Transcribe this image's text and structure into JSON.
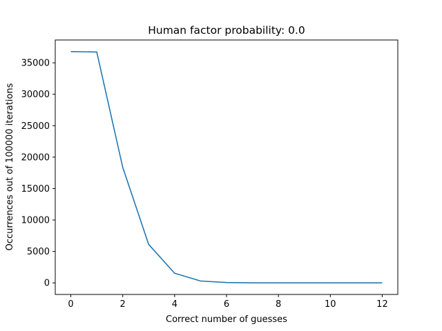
{
  "chart_data": {
    "type": "line",
    "title": "Human factor probability: 0.0",
    "xlabel": "Correct number of guesses",
    "ylabel": "Occurrences out of 100000 iterations",
    "x": [
      0,
      1,
      2,
      3,
      4,
      5,
      6,
      7,
      8,
      9,
      10,
      11,
      12
    ],
    "series": [
      {
        "values": [
          36788,
          36710,
          18380,
          6117,
          1535,
          300,
          60,
          8,
          1,
          0,
          0,
          0,
          0
        ],
        "color": "#1f77b4"
      }
    ],
    "xlim": [
      -0.6,
      12.6
    ],
    "ylim": [
      -1839.4,
      38627.4
    ],
    "xticks": [
      0,
      2,
      4,
      6,
      8,
      10,
      12
    ],
    "xtick_labels": [
      "0",
      "2",
      "4",
      "6",
      "8",
      "10",
      "12"
    ],
    "yticks": [
      0,
      5000,
      10000,
      15000,
      20000,
      25000,
      30000,
      35000
    ],
    "ytick_labels": [
      "0",
      "5000",
      "10000",
      "15000",
      "20000",
      "25000",
      "30000",
      "35000"
    ],
    "grid": false,
    "legend": "none"
  }
}
